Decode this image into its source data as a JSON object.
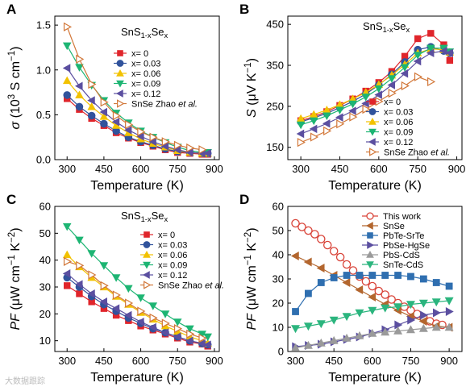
{
  "watermark": "大数据跟踪",
  "colors": {
    "x0": "#e0252b",
    "x003": "#31539c",
    "x006": "#f2c200",
    "x009": "#1db573",
    "x012": "#5b4fa0",
    "zhao": "#d2783a",
    "thiswork": "#d9453a",
    "snse": "#b3662e",
    "pbtesrte": "#2f6fb0",
    "pbsehgse": "#5b4fa0",
    "pbscdss": "#9a9a9a",
    "sntecds": "#2bb57e"
  },
  "chart_data": [
    {
      "panel": "A",
      "type": "line",
      "annotation_base": "SnS",
      "annotation_sub": "1-x",
      "annotation_mid": "Se",
      "annotation_sub2": "x",
      "xlabel": "Temperature (K)",
      "ylabel": "σ (10³ S cm⁻¹)",
      "ylabel_parts": {
        "sym": "σ",
        "pre": " (10",
        "sup1": "3",
        "mid": " S cm",
        "sup2": "−1",
        "post": ")"
      },
      "xlim": [
        250,
        920
      ],
      "ylim": [
        0,
        1.6
      ],
      "xticks": [
        300,
        450,
        600,
        750,
        900
      ],
      "yticks": [
        0.0,
        0.5,
        1.0,
        1.5
      ],
      "xtick_labels": [
        "300",
        "450",
        "600",
        "750",
        "900"
      ],
      "ytick_labels": [
        "0.0",
        "0.5",
        "1.0",
        "1.5"
      ],
      "legend_position": "center-right",
      "series": [
        {
          "name": "x= 0",
          "key": "x0",
          "marker": "square",
          "x": [
            300,
            350,
            400,
            450,
            500,
            550,
            600,
            650,
            700,
            750,
            800,
            850,
            873
          ],
          "y": [
            0.68,
            0.56,
            0.46,
            0.38,
            0.3,
            0.24,
            0.19,
            0.15,
            0.11,
            0.08,
            0.07,
            0.06,
            0.06
          ]
        },
        {
          "name": "x= 0.03",
          "key": "x003",
          "marker": "circle",
          "x": [
            300,
            350,
            400,
            450,
            500,
            550,
            600,
            650,
            700,
            750,
            800,
            850,
            873
          ],
          "y": [
            0.72,
            0.59,
            0.49,
            0.4,
            0.32,
            0.25,
            0.2,
            0.16,
            0.12,
            0.09,
            0.08,
            0.07,
            0.07
          ]
        },
        {
          "name": "x= 0.06",
          "key": "x006",
          "marker": "triangle-up",
          "x": [
            300,
            350,
            400,
            450,
            500,
            550,
            600,
            650,
            700,
            750,
            800,
            850,
            873
          ],
          "y": [
            0.88,
            0.72,
            0.59,
            0.48,
            0.38,
            0.3,
            0.23,
            0.18,
            0.14,
            0.1,
            0.08,
            0.07,
            0.07
          ]
        },
        {
          "name": "x= 0.09",
          "key": "x009",
          "marker": "triangle-down",
          "x": [
            300,
            350,
            400,
            450,
            500,
            550,
            600,
            650,
            700,
            750,
            800,
            850,
            873
          ],
          "y": [
            1.27,
            1.03,
            0.83,
            0.66,
            0.52,
            0.41,
            0.32,
            0.25,
            0.19,
            0.14,
            0.1,
            0.08,
            0.08
          ]
        },
        {
          "name": "x= 0.12",
          "key": "x012",
          "marker": "triangle-left",
          "x": [
            300,
            350,
            400,
            450,
            500,
            550,
            600,
            650,
            700,
            750,
            800,
            850,
            873
          ],
          "y": [
            1.02,
            0.82,
            0.66,
            0.53,
            0.42,
            0.33,
            0.26,
            0.2,
            0.15,
            0.11,
            0.08,
            0.07,
            0.07
          ]
        },
        {
          "name": "SnSe  Zhao et al.",
          "name_plain": "SnSe  Zhao ",
          "name_italic": "et al.",
          "key": "zhao",
          "marker": "triangle-right-open",
          "x": [
            300,
            350,
            400,
            450,
            500,
            550,
            600,
            650,
            700,
            750,
            800,
            850
          ],
          "y": [
            1.48,
            1.12,
            0.84,
            0.64,
            0.49,
            0.39,
            0.31,
            0.25,
            0.2,
            0.16,
            0.13,
            0.11
          ]
        }
      ]
    },
    {
      "panel": "B",
      "type": "line",
      "annotation_base": "SnS",
      "annotation_sub": "1-x",
      "annotation_mid": "Se",
      "annotation_sub2": "x",
      "xlabel": "Temperature (K)",
      "ylabel": "S (μV K⁻¹)",
      "ylabel_parts": {
        "sym": "S",
        "pre": " (μV K",
        "sup1": "",
        "mid": "",
        "sup2": "−1",
        "post": ")"
      },
      "xlim": [
        250,
        920
      ],
      "ylim": [
        120,
        470
      ],
      "xticks": [
        300,
        450,
        600,
        750,
        900
      ],
      "yticks": [
        150,
        250,
        350,
        450
      ],
      "xtick_labels": [
        "300",
        "450",
        "600",
        "750",
        "900"
      ],
      "ytick_labels": [
        "150",
        "250",
        "350",
        "450"
      ],
      "legend_position": "bottom-right",
      "series": [
        {
          "name": "x= 0",
          "key": "x0",
          "marker": "square",
          "x": [
            300,
            350,
            400,
            450,
            500,
            550,
            600,
            650,
            700,
            750,
            800,
            850,
            873
          ],
          "y": [
            215,
            225,
            237,
            252,
            268,
            287,
            308,
            335,
            372,
            415,
            428,
            400,
            362
          ]
        },
        {
          "name": "x= 0.03",
          "key": "x003",
          "marker": "circle",
          "x": [
            300,
            350,
            400,
            450,
            500,
            550,
            600,
            650,
            700,
            750,
            800,
            850,
            873
          ],
          "y": [
            212,
            222,
            233,
            247,
            262,
            280,
            302,
            328,
            358,
            388,
            395,
            385,
            380
          ]
        },
        {
          "name": "x= 0.06",
          "key": "x006",
          "marker": "triangle-up",
          "x": [
            300,
            350,
            400,
            450,
            500,
            550,
            600,
            650,
            700,
            750,
            800,
            850,
            873
          ],
          "y": [
            220,
            230,
            241,
            254,
            268,
            284,
            303,
            326,
            352,
            380,
            390,
            388,
            382
          ]
        },
        {
          "name": "x= 0.09",
          "key": "x009",
          "marker": "triangle-down",
          "x": [
            300,
            350,
            400,
            450,
            500,
            550,
            600,
            650,
            700,
            750,
            800,
            850,
            873
          ],
          "y": [
            205,
            215,
            227,
            241,
            256,
            273,
            293,
            318,
            345,
            375,
            392,
            392,
            383
          ]
        },
        {
          "name": "x= 0.12",
          "key": "x012",
          "marker": "triangle-left",
          "x": [
            300,
            350,
            400,
            450,
            500,
            550,
            600,
            650,
            700,
            750,
            800,
            850,
            873
          ],
          "y": [
            183,
            195,
            208,
            223,
            239,
            257,
            278,
            302,
            330,
            360,
            380,
            385,
            380
          ]
        },
        {
          "name": "SnSe Zhao et al.",
          "name_plain": "SnSe Zhao ",
          "name_italic": "et al.",
          "key": "zhao",
          "marker": "triangle-right-open",
          "x": [
            300,
            350,
            400,
            450,
            500,
            550,
            600,
            650,
            700,
            750,
            800
          ],
          "y": [
            162,
            175,
            190,
            207,
            224,
            243,
            262,
            282,
            300,
            322,
            310
          ]
        }
      ]
    },
    {
      "panel": "C",
      "type": "line",
      "annotation_base": "SnS",
      "annotation_sub": "1-x",
      "annotation_mid": "Se",
      "annotation_sub2": "x",
      "xlabel": "Temperature (K)",
      "ylabel": "PF (μW cm⁻¹ K⁻²)",
      "ylabel_parts": {
        "sym": "PF",
        "pre": " (μW cm",
        "sup1": "−1",
        "mid": " K",
        "sup2": "−2",
        "post": ")"
      },
      "xlim": [
        250,
        920
      ],
      "ylim": [
        6,
        60
      ],
      "xticks": [
        300,
        450,
        600,
        750,
        900
      ],
      "yticks": [
        10,
        20,
        30,
        40,
        50,
        60
      ],
      "xtick_labels": [
        "300",
        "450",
        "600",
        "750",
        "900"
      ],
      "ytick_labels": [
        "10",
        "20",
        "30",
        "40",
        "50",
        "60"
      ],
      "legend_position": "top-right",
      "series": [
        {
          "name": "x= 0",
          "key": "x0",
          "marker": "square",
          "x": [
            300,
            350,
            400,
            450,
            500,
            550,
            600,
            650,
            700,
            750,
            800,
            850,
            873
          ],
          "y": [
            30.5,
            27.5,
            24.5,
            22.0,
            19.5,
            17.5,
            15.5,
            14.0,
            12.5,
            11.0,
            9.5,
            8.8,
            8.0
          ]
        },
        {
          "name": "x= 0.03",
          "key": "x003",
          "marker": "circle",
          "x": [
            300,
            350,
            400,
            450,
            500,
            550,
            600,
            650,
            700,
            750,
            800,
            850,
            873
          ],
          "y": [
            33.5,
            30.0,
            26.5,
            23.5,
            21.0,
            18.5,
            16.5,
            14.5,
            13.0,
            11.5,
            10.0,
            9.0,
            8.5
          ]
        },
        {
          "name": "x= 0.06",
          "key": "x006",
          "marker": "triangle-up",
          "x": [
            300,
            350,
            400,
            450,
            500,
            550,
            600,
            650,
            700,
            750,
            800,
            850,
            873
          ],
          "y": [
            42.0,
            37.5,
            33.5,
            30.0,
            26.5,
            23.5,
            20.5,
            18.0,
            15.5,
            13.5,
            11.5,
            10.0,
            9.0
          ]
        },
        {
          "name": "x= 0.09",
          "key": "x009",
          "marker": "triangle-down",
          "x": [
            300,
            350,
            400,
            450,
            500,
            550,
            600,
            650,
            700,
            750,
            800,
            850,
            873
          ],
          "y": [
            52.5,
            47.5,
            42.5,
            38.0,
            33.5,
            29.5,
            26.0,
            23.0,
            20.0,
            17.0,
            14.5,
            12.5,
            11.5
          ]
        },
        {
          "name": "x= 0.12",
          "key": "x012",
          "marker": "triangle-left",
          "x": [
            300,
            350,
            400,
            450,
            500,
            550,
            600,
            650,
            700,
            750,
            800,
            850,
            873
          ],
          "y": [
            35.0,
            31.0,
            27.5,
            24.5,
            22.0,
            19.5,
            17.0,
            15.0,
            13.0,
            11.5,
            10.0,
            9.0,
            8.5
          ]
        },
        {
          "name": "SnSe Zhao et al.",
          "name_plain": "SnSe Zhao ",
          "name_italic": "et al.",
          "key": "zhao",
          "marker": "triangle-right-open",
          "x": [
            300,
            350,
            400,
            450,
            500,
            550,
            600,
            650,
            700,
            750,
            800,
            850
          ],
          "y": [
            39.5,
            38.0,
            34.5,
            30.5,
            27.0,
            24.0,
            21.0,
            18.5,
            16.5,
            14.5,
            12.5,
            11.0
          ]
        }
      ]
    },
    {
      "panel": "D",
      "type": "line",
      "xlabel": "Temperature (K)",
      "ylabel": "PF (μW cm⁻¹ K⁻²)",
      "ylabel_parts": {
        "sym": "PF",
        "pre": " (μW cm",
        "sup1": "−1",
        "mid": " K",
        "sup2": "−2",
        "post": ")"
      },
      "xlim": [
        270,
        950
      ],
      "ylim": [
        0,
        60
      ],
      "xticks": [
        300,
        450,
        600,
        750,
        900
      ],
      "yticks": [
        0,
        10,
        20,
        30,
        40,
        50,
        60
      ],
      "xtick_labels": [
        "300",
        "450",
        "600",
        "750",
        "900"
      ],
      "ytick_labels": [
        "0",
        "10",
        "20",
        "30",
        "40",
        "50",
        "60"
      ],
      "legend_position": "top-right",
      "series": [
        {
          "name": "This work",
          "key": "thiswork",
          "marker": "circle-open",
          "x": [
            300,
            325,
            350,
            375,
            400,
            425,
            450,
            475,
            500,
            525,
            550,
            575,
            600,
            625,
            650,
            675,
            700,
            725,
            750,
            775,
            800,
            825,
            850,
            873
          ],
          "y": [
            53,
            51.5,
            50,
            48.5,
            46.5,
            44,
            41.5,
            39,
            36,
            33.5,
            31,
            29,
            27,
            25,
            23.5,
            21.5,
            20,
            18.5,
            17,
            15.5,
            14,
            12.5,
            11.5,
            11
          ]
        },
        {
          "name": "SnSe",
          "key": "snse",
          "marker": "triangle-left",
          "x": [
            300,
            350,
            400,
            450,
            500,
            550,
            600,
            650,
            700,
            750,
            800,
            850,
            900
          ],
          "y": [
            39.5,
            37,
            34.5,
            31.5,
            28.5,
            25.5,
            22.5,
            19.5,
            17,
            14.5,
            12.5,
            10.5,
            10
          ]
        },
        {
          "name": "PbTe-SrTe",
          "key": "pbtesrte",
          "marker": "square",
          "x": [
            300,
            350,
            400,
            450,
            500,
            550,
            600,
            650,
            700,
            750,
            800,
            850,
            900
          ],
          "y": [
            16.5,
            24,
            28.5,
            30.5,
            31.5,
            31.5,
            31.5,
            31.5,
            31.5,
            31,
            30,
            28.5,
            27
          ]
        },
        {
          "name": "PbSe-HgSe",
          "key": "pbsehgse",
          "marker": "triangle-right",
          "x": [
            300,
            350,
            400,
            450,
            500,
            550,
            600,
            650,
            700,
            750,
            800,
            850,
            900
          ],
          "y": [
            2,
            2.5,
            3,
            4,
            5,
            6,
            7.5,
            9,
            11,
            13,
            15,
            16,
            16.5
          ]
        },
        {
          "name": "PbS-CdS",
          "key": "pbscdss",
          "marker": "triangle-up",
          "x": [
            300,
            350,
            400,
            450,
            500,
            550,
            600,
            650,
            700,
            750,
            800,
            850,
            900
          ],
          "y": [
            1.5,
            2.5,
            3.5,
            4.5,
            5.5,
            6.5,
            7.5,
            8,
            8.5,
            9,
            9.5,
            10,
            10
          ]
        },
        {
          "name": "SnTe-CdS",
          "key": "sntecds",
          "marker": "triangle-down",
          "x": [
            300,
            350,
            400,
            450,
            500,
            550,
            600,
            650,
            700,
            750,
            800,
            850,
            900
          ],
          "y": [
            9.5,
            10.5,
            11.5,
            13,
            14.5,
            16,
            17,
            18,
            18.5,
            19.5,
            20,
            20.5,
            21
          ]
        }
      ]
    }
  ]
}
